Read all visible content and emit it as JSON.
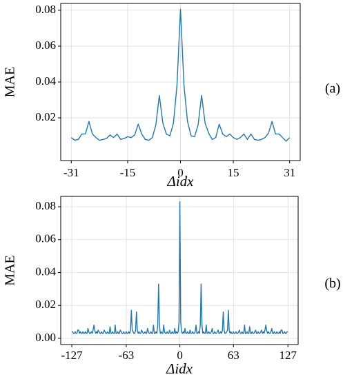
{
  "chart_data": [
    {
      "type": "line",
      "xlabel": "Δidx",
      "ylabel": "MAE",
      "annotation": "(a)",
      "grid": true,
      "xlim": [
        -34,
        34
      ],
      "ylim": [
        -0.0038,
        0.0838
      ],
      "xticks": [
        -31,
        -15,
        0,
        15,
        31
      ],
      "yticks": [
        0.02,
        0.04,
        0.06,
        0.08
      ],
      "x": [
        -31,
        -30,
        -29,
        -28,
        -27,
        -26,
        -25,
        -24,
        -23,
        -22,
        -21,
        -20,
        -19,
        -18,
        -17,
        -16,
        -15,
        -14,
        -13,
        -12,
        -11,
        -10,
        -9,
        -8,
        -7,
        -6,
        -5,
        -4,
        -3,
        -2,
        -1,
        0,
        1,
        2,
        3,
        4,
        5,
        6,
        7,
        8,
        9,
        10,
        11,
        12,
        13,
        14,
        15,
        16,
        17,
        18,
        19,
        20,
        21,
        22,
        23,
        24,
        25,
        26,
        27,
        28,
        29,
        30,
        31
      ],
      "series": [
        {
          "color": "#1f77b4",
          "values": [
            0.009,
            0.0075,
            0.008,
            0.011,
            0.011,
            0.018,
            0.011,
            0.009,
            0.0075,
            0.008,
            0.0085,
            0.0105,
            0.009,
            0.011,
            0.008,
            0.0085,
            0.0095,
            0.009,
            0.0105,
            0.0165,
            0.011,
            0.008,
            0.0075,
            0.009,
            0.016,
            0.0325,
            0.017,
            0.011,
            0.01,
            0.017,
            0.038,
            0.0805,
            0.038,
            0.018,
            0.01,
            0.0095,
            0.016,
            0.0325,
            0.017,
            0.0115,
            0.008,
            0.009,
            0.0165,
            0.011,
            0.0095,
            0.011,
            0.009,
            0.008,
            0.009,
            0.011,
            0.008,
            0.011,
            0.008,
            0.0075,
            0.008,
            0.009,
            0.0115,
            0.018,
            0.011,
            0.011,
            0.009,
            0.007,
            0.009
          ]
        }
      ]
    },
    {
      "type": "line",
      "xlabel": "Δidx",
      "ylabel": "MAE",
      "annotation": "(b)",
      "grid": true,
      "xlim": [
        -140,
        139
      ],
      "ylim": [
        -0.0038,
        0.0863
      ],
      "xticks": [
        -127,
        -63,
        0,
        63,
        127
      ],
      "yticks": [
        {
          "value": 0,
          "label": "0.00"
        },
        0.02,
        0.04,
        0.06,
        0.08
      ],
      "x": [
        -127,
        -126,
        -125,
        -124,
        -123,
        -122,
        -121,
        -120,
        -119,
        -118,
        -117,
        -116,
        -115,
        -114,
        -113,
        -112,
        -111,
        -110,
        -109,
        -108,
        -107,
        -106,
        -105,
        -104,
        -103,
        -102,
        -101,
        -100,
        -99,
        -98,
        -97,
        -96,
        -95,
        -94,
        -93,
        -92,
        -91,
        -90,
        -89,
        -88,
        -87,
        -86,
        -85,
        -84,
        -83,
        -82,
        -81,
        -80,
        -79,
        -78,
        -77,
        -76,
        -75,
        -74,
        -73,
        -72,
        -71,
        -70,
        -69,
        -68,
        -67,
        -66,
        -65,
        -64,
        -63,
        -62,
        -61,
        -60,
        -59,
        -58,
        -57,
        -56,
        -55,
        -54,
        -53,
        -52,
        -51,
        -50,
        -49,
        -48,
        -47,
        -46,
        -45,
        -44,
        -43,
        -42,
        -41,
        -40,
        -39,
        -38,
        -37,
        -36,
        -35,
        -34,
        -33,
        -32,
        -31,
        -30,
        -29,
        -28,
        -27,
        -26,
        -25,
        -24,
        -23,
        -22,
        -21,
        -20,
        -19,
        -18,
        -17,
        -16,
        -15,
        -14,
        -13,
        -12,
        -11,
        -10,
        -9,
        -8,
        -7,
        -6,
        -5,
        -4,
        -3,
        -2,
        -1,
        0,
        1,
        2,
        3,
        4,
        5,
        6,
        7,
        8,
        9,
        10,
        11,
        12,
        13,
        14,
        15,
        16,
        17,
        18,
        19,
        20,
        21,
        22,
        23,
        24,
        25,
        26,
        27,
        28,
        29,
        30,
        31,
        32,
        33,
        34,
        35,
        36,
        37,
        38,
        39,
        40,
        41,
        42,
        43,
        44,
        45,
        46,
        47,
        48,
        49,
        50,
        51,
        52,
        53,
        54,
        55,
        56,
        57,
        58,
        59,
        60,
        61,
        62,
        63,
        64,
        65,
        66,
        67,
        68,
        69,
        70,
        71,
        72,
        73,
        74,
        75,
        76,
        77,
        78,
        79,
        80,
        81,
        82,
        83,
        84,
        85,
        86,
        87,
        88,
        89,
        90,
        91,
        92,
        93,
        94,
        95,
        96,
        97,
        98,
        99,
        100,
        101,
        102,
        103,
        104,
        105,
        106,
        107,
        108,
        109,
        110,
        111,
        112,
        113,
        114,
        115,
        116,
        117,
        118,
        119,
        120,
        121,
        122,
        123,
        124,
        125,
        126,
        127
      ],
      "series": [
        {
          "color": "#1f77b4",
          "values": [
            0.004,
            0.004,
            0.003,
            0.003,
            0.004,
            0.003,
            0.003,
            0.005,
            0.005,
            0.003,
            0.004,
            0.003,
            0.003,
            0.004,
            0.003,
            0.003,
            0.004,
            0.003,
            0.003,
            0.006,
            0.004,
            0.003,
            0.003,
            0.004,
            0.003,
            0.005,
            0.008,
            0.005,
            0.003,
            0.004,
            0.003,
            0.005,
            0.004,
            0.003,
            0.003,
            0.004,
            0.003,
            0.003,
            0.005,
            0.004,
            0.003,
            0.003,
            0.004,
            0.003,
            0.003,
            0.007,
            0.003,
            0.003,
            0.004,
            0.003,
            0.003,
            0.008,
            0.003,
            0.003,
            0.004,
            0.003,
            0.003,
            0.005,
            0.004,
            0.003,
            0.003,
            0.004,
            0.003,
            0.003,
            0.004,
            0.003,
            0.003,
            0.004,
            0.003,
            0.005,
            0.017,
            0.005,
            0.004,
            0.003,
            0.003,
            0.005,
            0.016,
            0.005,
            0.003,
            0.004,
            0.003,
            0.003,
            0.005,
            0.004,
            0.003,
            0.003,
            0.004,
            0.003,
            0.003,
            0.006,
            0.004,
            0.003,
            0.003,
            0.004,
            0.003,
            0.003,
            0.008,
            0.003,
            0.003,
            0.004,
            0.003,
            0.008,
            0.033,
            0.008,
            0.003,
            0.004,
            0.003,
            0.003,
            0.008,
            0.004,
            0.003,
            0.003,
            0.004,
            0.003,
            0.003,
            0.005,
            0.003,
            0.003,
            0.004,
            0.003,
            0.003,
            0.006,
            0.003,
            0.004,
            0.003,
            0.004,
            0.01,
            0.083,
            0.01,
            0.004,
            0.003,
            0.004,
            0.003,
            0.006,
            0.003,
            0.003,
            0.004,
            0.003,
            0.003,
            0.005,
            0.003,
            0.003,
            0.004,
            0.003,
            0.003,
            0.004,
            0.008,
            0.003,
            0.003,
            0.004,
            0.003,
            0.008,
            0.033,
            0.008,
            0.003,
            0.004,
            0.003,
            0.003,
            0.008,
            0.003,
            0.003,
            0.004,
            0.003,
            0.003,
            0.004,
            0.006,
            0.003,
            0.003,
            0.004,
            0.003,
            0.003,
            0.004,
            0.005,
            0.003,
            0.003,
            0.004,
            0.003,
            0.005,
            0.016,
            0.005,
            0.003,
            0.003,
            0.004,
            0.005,
            0.017,
            0.005,
            0.003,
            0.004,
            0.003,
            0.003,
            0.004,
            0.003,
            0.003,
            0.004,
            0.003,
            0.003,
            0.004,
            0.005,
            0.003,
            0.003,
            0.004,
            0.003,
            0.003,
            0.008,
            0.003,
            0.003,
            0.004,
            0.003,
            0.003,
            0.007,
            0.003,
            0.003,
            0.004,
            0.003,
            0.003,
            0.004,
            0.005,
            0.003,
            0.003,
            0.004,
            0.003,
            0.003,
            0.004,
            0.005,
            0.003,
            0.004,
            0.003,
            0.005,
            0.008,
            0.005,
            0.003,
            0.004,
            0.003,
            0.003,
            0.004,
            0.006,
            0.003,
            0.003,
            0.004,
            0.003,
            0.003,
            0.004,
            0.003,
            0.003,
            0.004,
            0.003,
            0.005,
            0.005,
            0.003,
            0.003,
            0.004,
            0.003,
            0.003,
            0.004,
            0.004
          ]
        }
      ]
    }
  ]
}
